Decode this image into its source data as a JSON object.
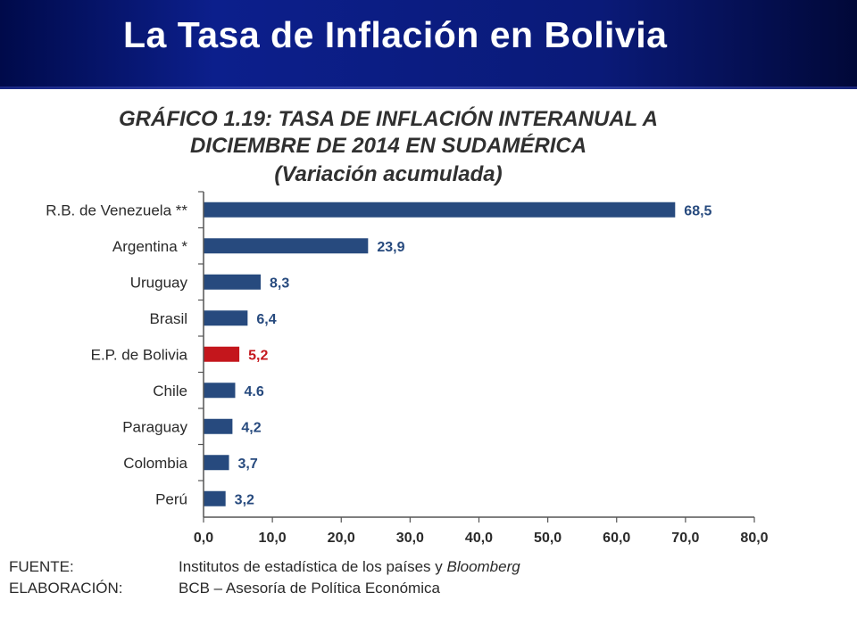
{
  "header": {
    "title": "La Tasa de Inflación en Bolivia"
  },
  "colors": {
    "header_bg": "#0c1f8c",
    "bar_default": "#274a7e",
    "bar_highlight": "#c4161c",
    "value_default": "#274a7e",
    "value_highlight": "#c4161c"
  },
  "chart_data": {
    "type": "bar",
    "orientation": "horizontal",
    "title": "GRÁFICO 1.19: TASA DE INFLACIÓN INTERANUAL A",
    "title_line2": "DICIEMBRE DE 2014 EN SUDAMÉRICA",
    "subtitle": "(Variación acumulada)",
    "categories": [
      "R.B. de Venezuela **",
      "Argentina *",
      "Uruguay",
      "Brasil",
      "E.P. de Bolivia",
      "Chile",
      "Paraguay",
      "Colombia",
      "Perú"
    ],
    "values": [
      68.5,
      23.9,
      8.3,
      6.4,
      5.2,
      4.6,
      4.2,
      3.7,
      3.2
    ],
    "value_labels": [
      "68,5",
      "23,9",
      "8,3",
      "6,4",
      "5,2",
      "4.6",
      "4,2",
      "3,7",
      "3,2"
    ],
    "highlight_index": 4,
    "xlim": [
      0,
      80
    ],
    "x_ticks": [
      0,
      10,
      20,
      30,
      40,
      50,
      60,
      70,
      80
    ],
    "x_tick_labels": [
      "0,0",
      "10,0",
      "20,0",
      "30,0",
      "40,0",
      "50,0",
      "60,0",
      "70,0",
      "80,0"
    ],
    "grid": false,
    "legend": "none"
  },
  "footer": {
    "source_key": "FUENTE:",
    "source_value": "Institutos de estadística de los países y ",
    "source_value_em": "Bloomberg",
    "elaboration_key": "ELABORACIÓN:",
    "elaboration_value": "BCB – Asesoría de Política Económica"
  }
}
